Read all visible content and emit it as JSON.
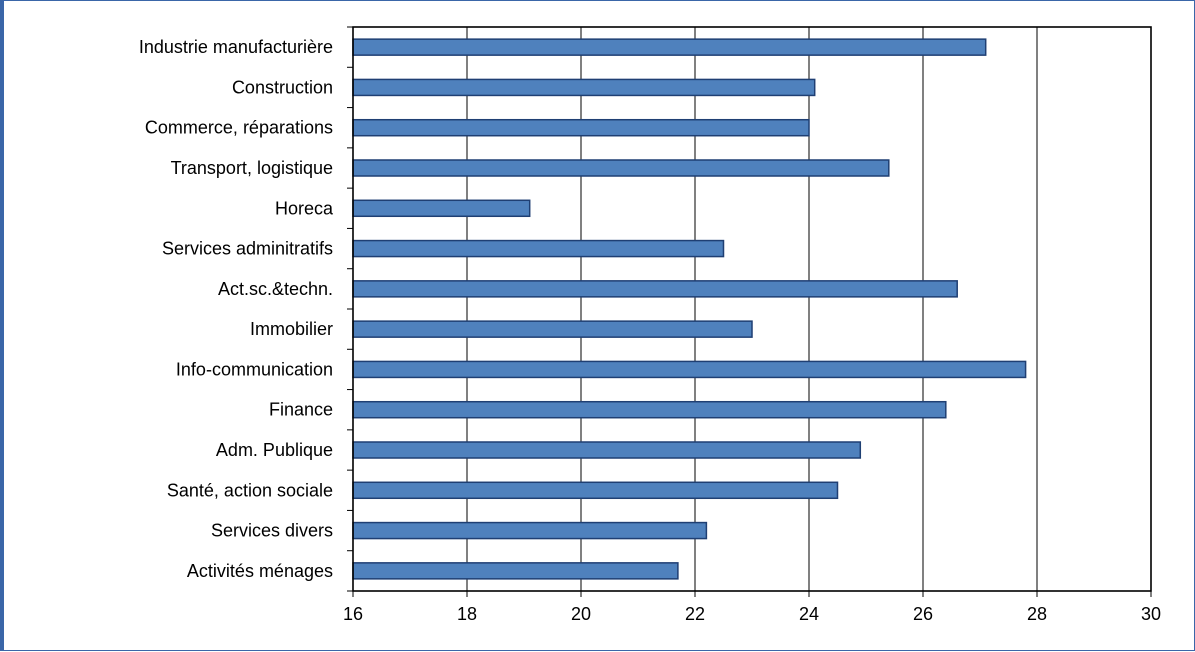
{
  "chart_data": {
    "type": "bar",
    "orientation": "horizontal",
    "categories": [
      "Industrie manufacturière",
      "Construction",
      "Commerce, réparations",
      "Transport, logistique",
      "Horeca",
      "Services adminitratifs",
      "Act.sc.&techn.",
      "Immobilier",
      "Info-communication",
      "Finance",
      "Adm. Publique",
      "Santé, action sociale",
      "Services divers",
      "Activités ménages"
    ],
    "values": [
      27.1,
      24.1,
      24.0,
      25.4,
      19.1,
      22.5,
      26.6,
      23.0,
      27.8,
      26.4,
      24.9,
      24.5,
      22.2,
      21.7
    ],
    "xlim": [
      16,
      30
    ],
    "xticks": [
      "16",
      "18",
      "20",
      "22",
      "24",
      "26",
      "28",
      "30"
    ],
    "grid": true,
    "bar_color": "#4f81bd",
    "bar_edge_color": "#1f3f73"
  }
}
